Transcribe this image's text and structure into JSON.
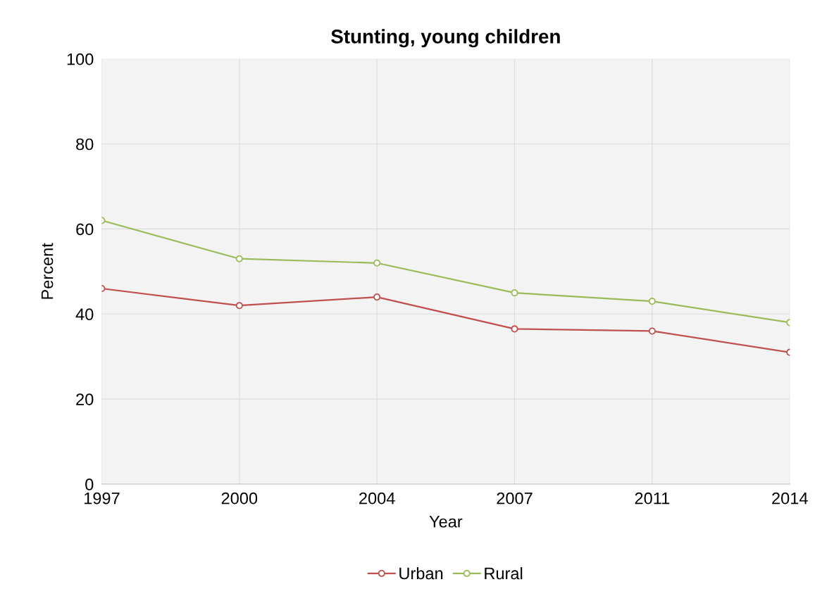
{
  "chart_data": {
    "type": "line",
    "title": "Stunting, young children",
    "xlabel": "Year",
    "ylabel": "Percent",
    "categories": [
      "1997",
      "2000",
      "2004",
      "2007",
      "2011",
      "2014"
    ],
    "series": [
      {
        "name": "Urban",
        "color": "#c0504d",
        "values": [
          46,
          42,
          44,
          36.5,
          36,
          31
        ]
      },
      {
        "name": "Rural",
        "color": "#9bbb59",
        "values": [
          62,
          53,
          52,
          45,
          43,
          38
        ]
      }
    ],
    "ylim": [
      0,
      100
    ],
    "yticks": [
      0,
      20,
      40,
      60,
      80,
      100
    ],
    "grid": true,
    "legend": "bottom",
    "marker": "circle",
    "line_style": "solid"
  }
}
